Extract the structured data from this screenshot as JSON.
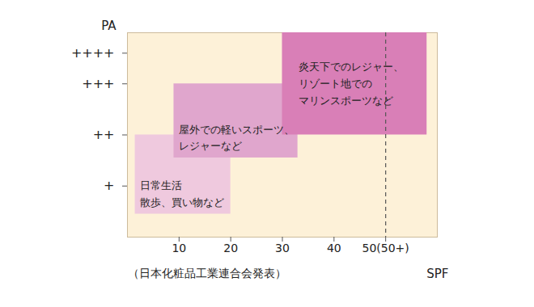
{
  "chart_data": {
    "type": "region",
    "xlabel": "SPF",
    "ylabel": "PA",
    "caption": "（日本化粧品工業連合会発表）",
    "xlim": [
      0,
      60
    ],
    "xticks": [
      10,
      20,
      30,
      40,
      {
        "value": 50,
        "label": "50(50+)"
      }
    ],
    "ylim": [
      0,
      4
    ],
    "yticks": [
      {
        "value": 1,
        "label": "+"
      },
      {
        "value": 2,
        "label": "++"
      },
      {
        "value": 3,
        "label": "+++"
      },
      {
        "value": 3.6,
        "label": "++++"
      }
    ],
    "reference_lines": [
      {
        "x": 50,
        "line_style": "dashed"
      }
    ],
    "regions": [
      {
        "label": [
          "日常生活",
          "散歩、買い物など"
        ],
        "x": [
          1.5,
          20
        ],
        "y": [
          0.45,
          2
        ],
        "color": "#efc9de"
      },
      {
        "label": [
          "屋外での軽いスポーツ、",
          "レジャーなど"
        ],
        "x": [
          9,
          33
        ],
        "y": [
          1.55,
          3
        ],
        "color": "#e0a6cd"
      },
      {
        "label": [
          "炎天下でのレジャー、",
          "リゾート地での",
          "マリンスポーツなど"
        ],
        "x": [
          30,
          58
        ],
        "y": [
          2,
          4
        ],
        "color": "#d97fb7"
      }
    ]
  }
}
